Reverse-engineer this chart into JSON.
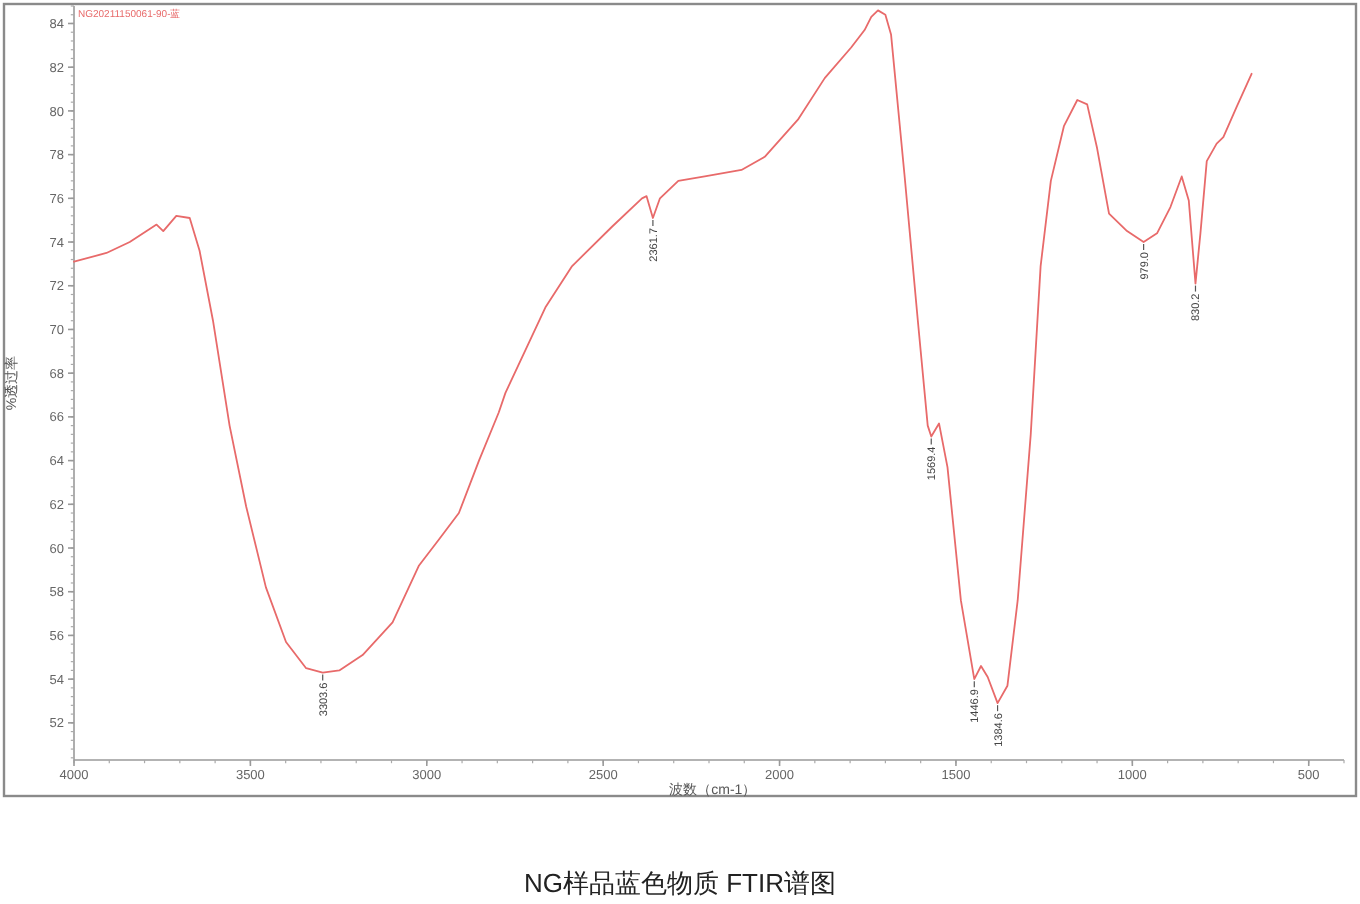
{
  "chart_data": {
    "type": "line",
    "xlabel": "波数（cm-1）",
    "ylabel": "%透过率",
    "legend": "top left",
    "xlim": [
      4000,
      400
    ],
    "ylim": [
      50.3,
      84.8
    ],
    "xticks": [
      4000,
      3500,
      3000,
      2500,
      2000,
      1500,
      1000,
      500
    ],
    "yticks": [
      52,
      54,
      56,
      58,
      60,
      62,
      64,
      66,
      68,
      70,
      72,
      74,
      76,
      78,
      80,
      82,
      84
    ],
    "series": [
      {
        "name": "NG20211150061-90-蓝",
        "color": "#e86a6a",
        "x": [
          4000,
          3908,
          3842,
          3766,
          3747,
          3710,
          3672,
          3644,
          3606,
          3559,
          3512,
          3456,
          3399,
          3342,
          3295,
          3248,
          3182,
          3097,
          3022,
          2965,
          2909,
          2852,
          2796,
          2777,
          2664,
          2588,
          2475,
          2390,
          2377,
          2359,
          2339,
          2287,
          2212,
          2108,
          2042,
          1948,
          1872,
          1797,
          1759,
          1740,
          1721,
          1700,
          1684,
          1646,
          1608,
          1580,
          1570,
          1548,
          1524,
          1486,
          1448,
          1429,
          1410,
          1382,
          1354,
          1325,
          1288,
          1260,
          1231,
          1194,
          1156,
          1128,
          1100,
          1066,
          1015,
          968,
          930,
          892,
          860,
          840,
          821,
          807,
          789,
          761,
          742,
          704,
          662
        ],
        "values": [
          73.1,
          73.5,
          74.0,
          74.8,
          74.5,
          75.2,
          75.1,
          73.6,
          70.4,
          65.6,
          61.9,
          58.2,
          55.7,
          54.5,
          54.3,
          54.4,
          55.1,
          56.6,
          59.2,
          60.4,
          61.6,
          64.0,
          66.2,
          67.1,
          71.0,
          72.9,
          74.7,
          76.0,
          76.1,
          75.1,
          76.0,
          76.8,
          77.0,
          77.3,
          77.9,
          79.6,
          81.5,
          82.9,
          83.7,
          84.3,
          84.6,
          84.4,
          83.5,
          77.1,
          70.4,
          65.6,
          65.1,
          65.7,
          63.7,
          57.6,
          54.0,
          54.6,
          54.1,
          52.9,
          53.7,
          57.6,
          65.2,
          72.9,
          76.8,
          79.3,
          80.5,
          80.3,
          78.3,
          75.3,
          74.5,
          74.0,
          74.4,
          75.6,
          77.0,
          75.9,
          72.1,
          74.4,
          77.7,
          78.5,
          78.8,
          80.2,
          81.7
        ]
      }
    ],
    "annotations": [
      {
        "text": "3303.6",
        "x": 3295,
        "y": 54.3
      },
      {
        "text": "2361.7",
        "x": 2359,
        "y": 75.1
      },
      {
        "text": "1569.4",
        "x": 1570,
        "y": 65.1
      },
      {
        "text": "1446.9",
        "x": 1448,
        "y": 54.0
      },
      {
        "text": "1384.6",
        "x": 1382,
        "y": 52.9
      },
      {
        "text": "979.0",
        "x": 968,
        "y": 74.0
      },
      {
        "text": "830.2",
        "x": 821,
        "y": 72.1
      },
      "NG样品蓝色物质 FTIR谱图"
    ]
  }
}
